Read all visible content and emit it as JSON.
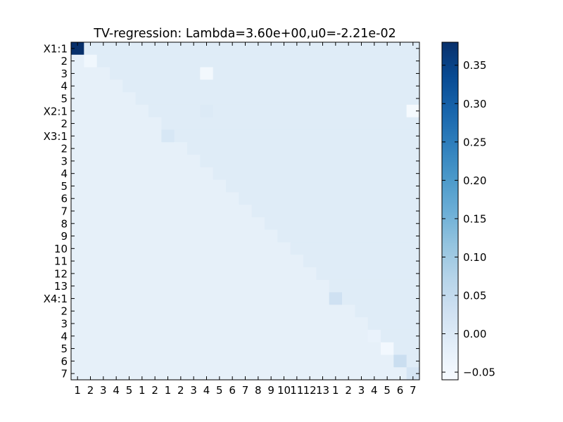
{
  "chart_data": {
    "type": "heatmap",
    "title": "TV-regression: Lambda=3.60e+00,u0=-2.21e-02",
    "xlabel": "",
    "ylabel": "",
    "row_labels": [
      "X1:1",
      "2",
      "3",
      "4",
      "5",
      "X2:1",
      "2",
      "X3:1",
      "2",
      "3",
      "4",
      "5",
      "6",
      "7",
      "8",
      "9",
      "10",
      "11",
      "12",
      "13",
      "X4:1",
      "2",
      "3",
      "4",
      "5",
      "6",
      "7"
    ],
    "col_labels": [
      "1",
      "2",
      "3",
      "4",
      "5",
      "1",
      "2",
      "1",
      "2",
      "3",
      "4",
      "5",
      "6",
      "7",
      "8",
      "9",
      "10",
      "11",
      "12",
      "13",
      "1",
      "2",
      "3",
      "4",
      "5",
      "6",
      "7"
    ],
    "diagonal_values": [
      0.38,
      -0.045,
      -0.022,
      -0.022,
      -0.022,
      -0.022,
      -0.022,
      0.01,
      -0.022,
      -0.022,
      -0.022,
      -0.022,
      -0.022,
      -0.022,
      -0.022,
      -0.022,
      -0.022,
      -0.022,
      -0.022,
      -0.022,
      0.03,
      -0.022,
      -0.022,
      -0.03,
      -0.05,
      0.04,
      0.015
    ],
    "upper_default": -0.007,
    "lower_value": -0.022,
    "outliers": [
      {
        "row": 2,
        "col": 10,
        "value": -0.048
      },
      {
        "row": 5,
        "col": 10,
        "value": 0.0
      },
      {
        "row": 5,
        "col": 26,
        "value": -0.055
      }
    ],
    "colorbar": {
      "vmin": -0.06,
      "vmax": 0.38,
      "ticks": [
        -0.05,
        0.0,
        0.05,
        0.1,
        0.15,
        0.2,
        0.25,
        0.3,
        0.35
      ],
      "tick_labels": [
        "−0.05",
        "0.00",
        "0.05",
        "0.10",
        "0.15",
        "0.20",
        "0.25",
        "0.30",
        "0.35"
      ],
      "colormap": "Blues"
    }
  }
}
